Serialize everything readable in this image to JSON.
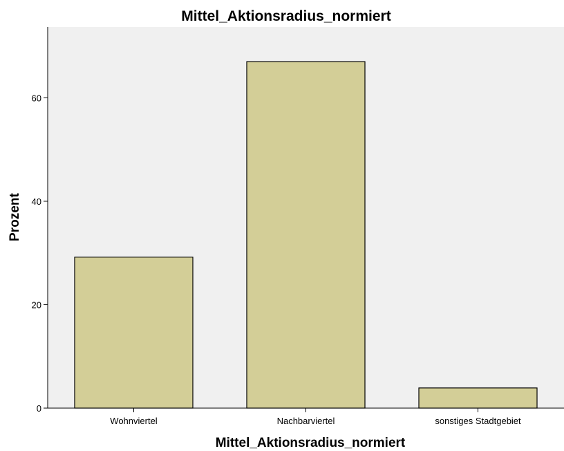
{
  "chart_data": {
    "type": "bar",
    "title": "Mittel_Aktionsradius_normiert",
    "xlabel": "Mittel_Aktionsradius_normiert",
    "ylabel": "Prozent",
    "categories": [
      "Wohnviertel",
      "Nachbarviertel",
      "sonstiges Stadtgebiet"
    ],
    "values": [
      29.2,
      67.0,
      3.9
    ],
    "ylim": [
      0,
      73.7
    ],
    "yticks": [
      0,
      20,
      40,
      60
    ],
    "grid": false,
    "legend": "none"
  },
  "colors": {
    "plot_background": "#f0f0f0",
    "bar_fill": "#d3ce97",
    "bar_stroke": "#000000"
  }
}
